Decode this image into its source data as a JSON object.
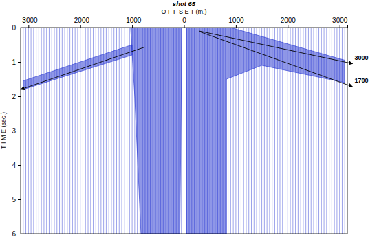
{
  "chart_data": {
    "type": "seismic_gather",
    "title": "shot 65",
    "x_label": "O F F S E T (m.)",
    "y_label": "T I M E (sec.)",
    "color": "#1f2fd0",
    "grid": false,
    "xlim": [
      -3150,
      3150
    ],
    "xticks": [
      -3000,
      -2000,
      -1000,
      0,
      1000,
      2000,
      3000
    ],
    "ylim": [
      0,
      6
    ],
    "yticks": [
      0,
      1,
      2,
      3,
      4,
      5,
      6
    ],
    "traces": [
      -3100,
      -3050,
      -3000,
      -2950,
      -2900,
      -2850,
      -2800,
      -2750,
      -2700,
      -2650,
      -2600,
      -2550,
      -2500,
      -2450,
      -2400,
      -2350,
      -2300,
      -2250,
      -2200,
      -2150,
      -2100,
      -2050,
      -2000,
      -1950,
      -1900,
      -1850,
      -1800,
      -1750,
      -1700,
      -1650,
      -1600,
      -1550,
      -1500,
      -1450,
      -1400,
      -1350,
      -1300,
      -1250,
      -1200,
      -1150,
      -1100,
      -1050,
      -1000,
      -950,
      -900,
      -850,
      -800,
      -750,
      -700,
      -650,
      -600,
      -550,
      -500,
      -450,
      -400,
      -350,
      -300,
      -250,
      -200,
      -150,
      -100,
      -50,
      50,
      100,
      150,
      200,
      250,
      300,
      350,
      400,
      450,
      500,
      550,
      600,
      650,
      700,
      750,
      800,
      850,
      900,
      950,
      1000,
      1050,
      1100,
      1150,
      1200,
      1250,
      1300,
      1350,
      1400,
      1450,
      1500,
      1550,
      1600,
      1650,
      1700,
      1750,
      1800,
      1850,
      1900,
      1950,
      2000,
      2050,
      2100,
      2150,
      2200,
      2250,
      2300,
      2350,
      2400,
      2450,
      2500,
      2550,
      2600,
      2650,
      2700,
      2750,
      2800,
      2850,
      2900,
      2950,
      3000,
      3050,
      3100
    ],
    "energy_zones": [
      {
        "offset": [
          -1030,
          -40,
          -60,
          -80,
          -830,
          -950
        ],
        "time": [
          0,
          0,
          3,
          6,
          6,
          2
        ]
      },
      {
        "offset": [
          50,
          900,
          3100,
          3100,
          1500,
          820,
          820,
          50
        ],
        "time": [
          0,
          0,
          0.95,
          1.6,
          1.1,
          1.5,
          6,
          6
        ]
      },
      {
        "offset": [
          -1000,
          -3100,
          -3100,
          -1000
        ],
        "time": [
          0.5,
          1.55,
          1.8,
          0.8
        ]
      }
    ],
    "annotations": [
      {
        "text": "3000",
        "x": [
          290,
          3250
        ],
        "y": [
          0.1,
          1.05
        ]
      },
      {
        "text": "1700",
        "x": [
          300,
          3250
        ],
        "y": [
          0.12,
          1.72
        ]
      },
      {
        "x": [
          -760,
          -3150
        ],
        "y": [
          0.57,
          1.8
        ]
      }
    ]
  }
}
